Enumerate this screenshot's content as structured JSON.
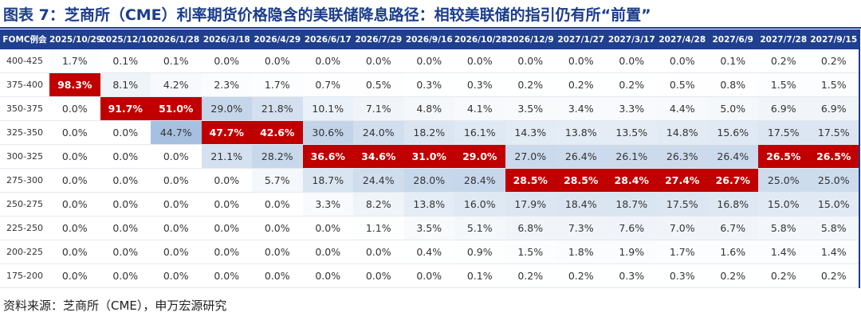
{
  "title": "图表 7：芝商所（CME）利率期货价格隐含的美联储降息路径：相较美联储的指引仍有所“前置”",
  "table": {
    "header": [
      "FOMC例会",
      "2025/10/29",
      "2025/12/10",
      "2026/1/28",
      "2026/3/18",
      "2026/4/29",
      "2026/6/17",
      "2026/7/29",
      "2026/9/16",
      "2026/10/28",
      "2026/12/9",
      "2027/1/27",
      "2027/3/17",
      "2027/4/28",
      "2027/6/9",
      "2027/7/28",
      "2027/9/15"
    ],
    "rows": [
      [
        "400-425",
        "1.7%",
        "0.1%",
        "0.1%",
        "0.0%",
        "0.0%",
        "0.0%",
        "0.0%",
        "0.0%",
        "0.0%",
        "0.0%",
        "0.0%",
        "0.0%",
        "0.0%",
        "0.1%",
        "0.2%",
        "0.2%"
      ],
      [
        "375-400",
        "98.3%",
        "8.1%",
        "4.2%",
        "2.3%",
        "1.7%",
        "0.7%",
        "0.5%",
        "0.3%",
        "0.3%",
        "0.2%",
        "0.2%",
        "0.2%",
        "0.5%",
        "0.8%",
        "1.5%",
        "1.5%"
      ],
      [
        "350-375",
        "0.0%",
        "91.7%",
        "51.0%",
        "29.0%",
        "21.8%",
        "10.1%",
        "7.1%",
        "4.8%",
        "4.1%",
        "3.5%",
        "3.4%",
        "3.3%",
        "4.4%",
        "5.0%",
        "6.9%",
        "6.9%"
      ],
      [
        "325-350",
        "0.0%",
        "0.0%",
        "44.7%",
        "47.7%",
        "42.6%",
        "30.6%",
        "24.0%",
        "18.2%",
        "16.1%",
        "14.3%",
        "13.8%",
        "13.5%",
        "14.8%",
        "15.6%",
        "17.5%",
        "17.5%"
      ],
      [
        "300-325",
        "0.0%",
        "0.0%",
        "0.0%",
        "21.1%",
        "28.2%",
        "36.6%",
        "34.6%",
        "31.0%",
        "29.0%",
        "27.0%",
        "26.4%",
        "26.1%",
        "26.3%",
        "26.4%",
        "26.5%",
        "26.5%"
      ],
      [
        "275-300",
        "0.0%",
        "0.0%",
        "0.0%",
        "0.0%",
        "5.7%",
        "18.7%",
        "24.4%",
        "28.0%",
        "28.4%",
        "28.5%",
        "28.5%",
        "28.4%",
        "27.4%",
        "26.7%",
        "25.0%",
        "25.0%"
      ],
      [
        "250-275",
        "0.0%",
        "0.0%",
        "0.0%",
        "0.0%",
        "0.0%",
        "3.3%",
        "8.2%",
        "13.8%",
        "16.0%",
        "17.9%",
        "18.4%",
        "18.7%",
        "17.5%",
        "16.8%",
        "15.0%",
        "15.0%"
      ],
      [
        "225-250",
        "0.0%",
        "0.0%",
        "0.0%",
        "0.0%",
        "0.0%",
        "0.0%",
        "1.1%",
        "3.5%",
        "5.1%",
        "6.8%",
        "7.3%",
        "7.6%",
        "7.0%",
        "6.7%",
        "5.8%",
        "5.8%"
      ],
      [
        "200-225",
        "0.0%",
        "0.0%",
        "0.0%",
        "0.0%",
        "0.0%",
        "0.0%",
        "0.0%",
        "0.4%",
        "0.9%",
        "1.5%",
        "1.8%",
        "1.9%",
        "1.7%",
        "1.6%",
        "1.4%",
        "1.4%"
      ],
      [
        "175-200",
        "0.0%",
        "0.0%",
        "0.0%",
        "0.0%",
        "0.0%",
        "0.0%",
        "0.0%",
        "0.0%",
        "0.1%",
        "0.2%",
        "0.2%",
        "0.3%",
        "0.3%",
        "0.2%",
        "0.2%",
        "0.2%"
      ]
    ]
  },
  "source": "资料来源：芝商所（CME），申万宏源研究"
}
